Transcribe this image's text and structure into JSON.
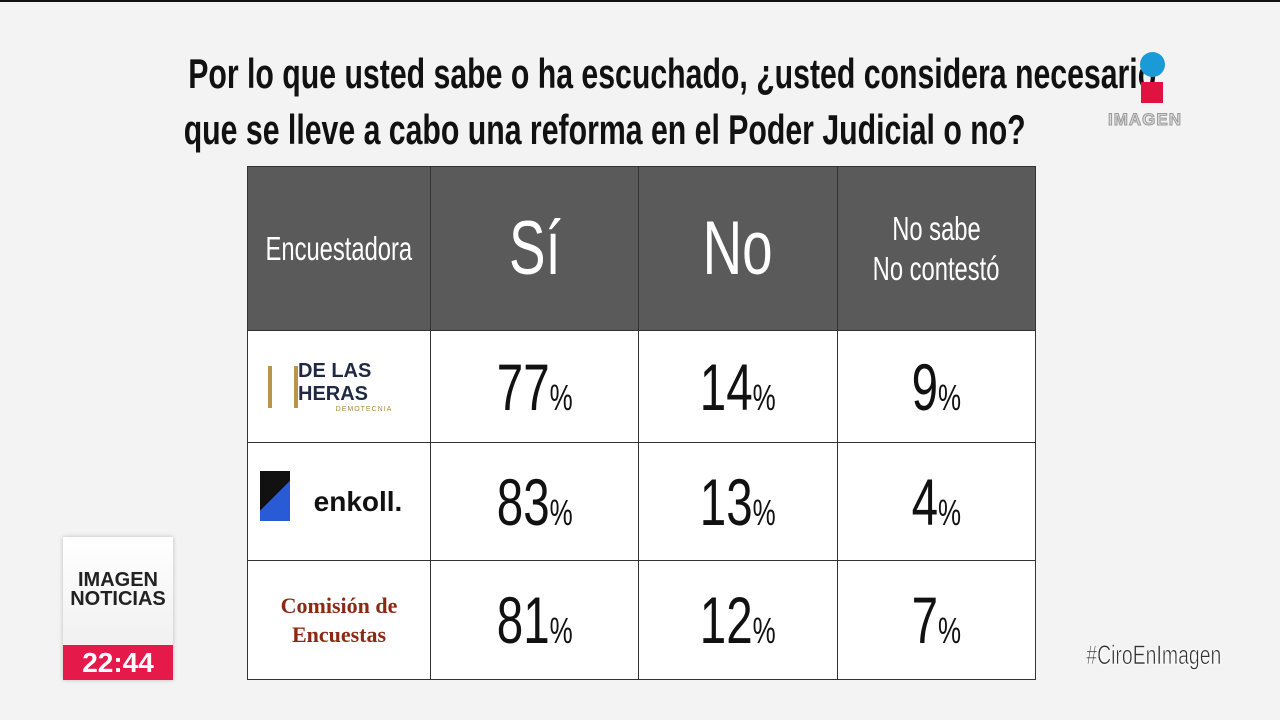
{
  "header": {
    "title_lines": [
      "Por lo que usted sabe o ha escuchado, ¿usted considera necesario",
      "que se lleve a cabo una reforma en el Poder Judicial o no?"
    ],
    "logo_text": "IMAGEN"
  },
  "table": {
    "columns": [
      [
        "Encuestadora"
      ],
      [
        "Sí"
      ],
      [
        "No"
      ],
      [
        "No sabe",
        "No contestó"
      ]
    ],
    "rows": [
      {
        "pollster_lines": [
          "DE LAS HERAS",
          "DEMOTECNIA"
        ],
        "cells": [
          {
            "number": 77,
            "suffix": "%"
          },
          {
            "number": 14,
            "suffix": "%"
          },
          {
            "number": 9,
            "suffix": "%"
          }
        ]
      },
      {
        "pollster_lines": [
          "enkoll."
        ],
        "cells": [
          {
            "number": 83,
            "suffix": "%"
          },
          {
            "number": 13,
            "suffix": "%"
          },
          {
            "number": 4,
            "suffix": "%"
          }
        ]
      },
      {
        "pollster_lines": [
          "Comisión de",
          "Encuestas"
        ],
        "cells": [
          {
            "number": 81,
            "suffix": "%"
          },
          {
            "number": 12,
            "suffix": "%"
          },
          {
            "number": 7,
            "suffix": "%"
          }
        ]
      }
    ]
  },
  "overlay": {
    "show_lines": [
      "IMAGEN",
      "NOTICIAS"
    ],
    "time": "22:44",
    "hashtag": "#CiroEnImagen"
  }
}
